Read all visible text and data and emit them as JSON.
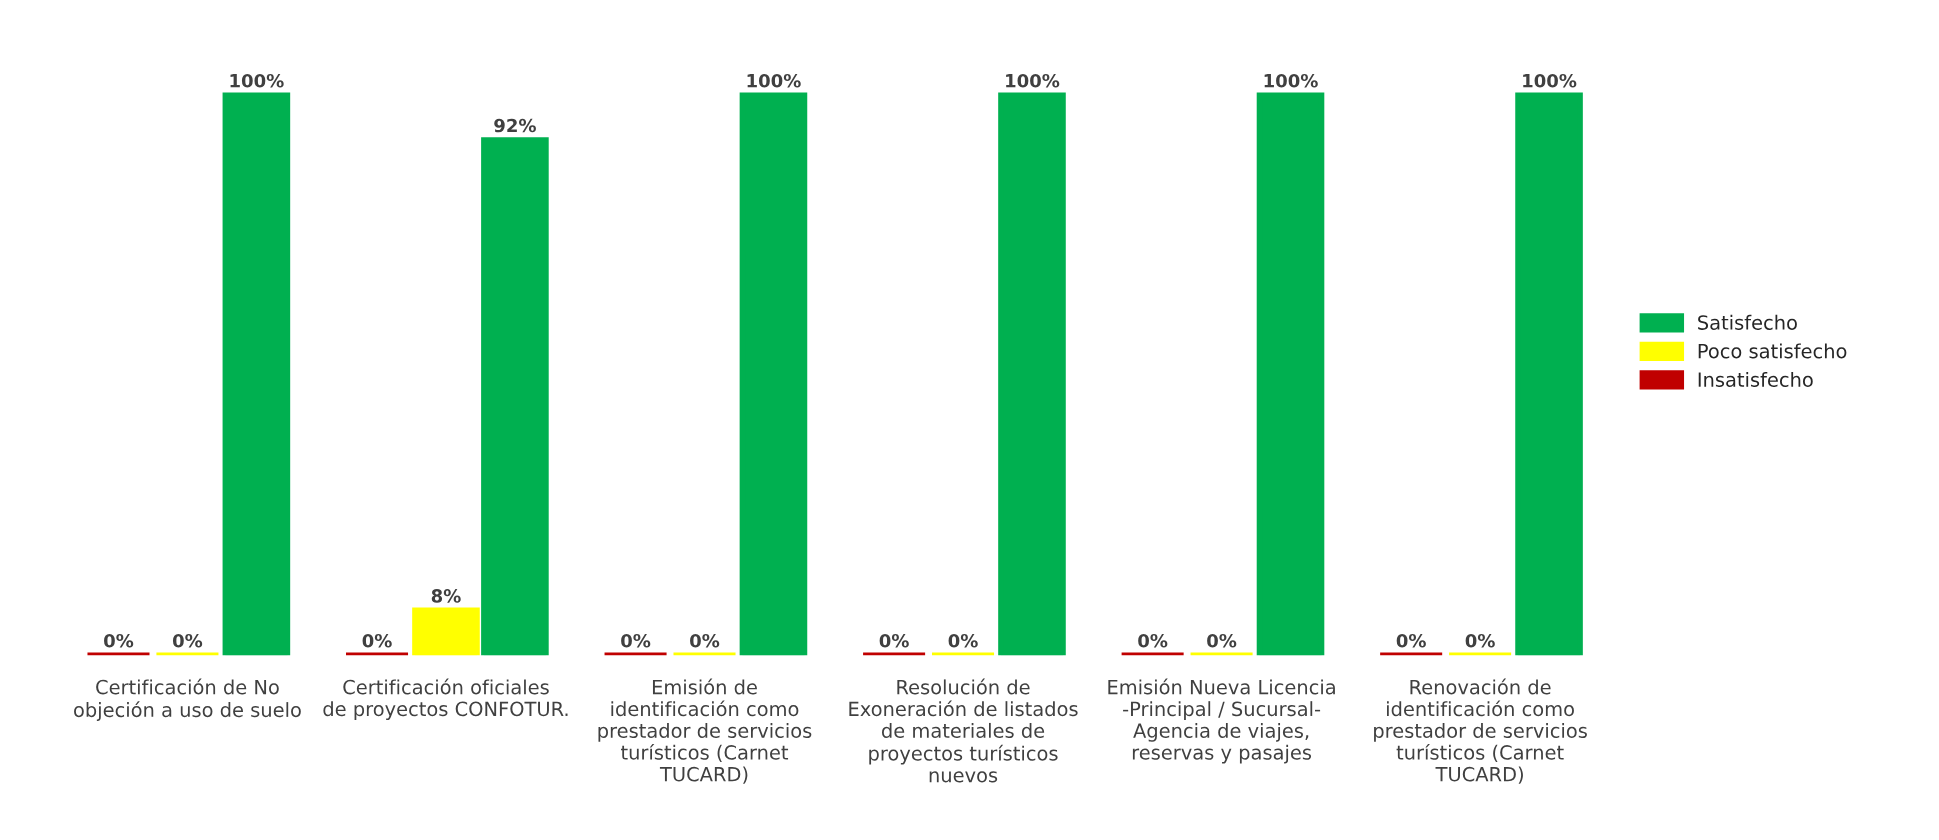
{
  "chart_data": {
    "type": "bar",
    "categories": [
      "Certificación de No objeción a uso de suelo",
      "Certificación oficiales de proyectos CONFOTUR.",
      "Emisión de identificación como prestador de servicios turísticos (Carnet TUCARD)",
      "Resolución de Exoneración de listados de materiales de proyectos turísticos nuevos",
      "Emisión Nueva Licencia -Principal / Sucursal- Agencia de viajes, reservas y pasajes",
      "Renovación de identificación como prestador de servicios turísticos (Carnet TUCARD)"
    ],
    "series": [
      {
        "name": "Insatisfecho",
        "color": "#c00000",
        "values": [
          0,
          0,
          0,
          0,
          0,
          0
        ],
        "value_labels": [
          "0%",
          "0%",
          "0%",
          "0%",
          "0%",
          "0%"
        ]
      },
      {
        "name": "Poco satisfecho",
        "color": "#ffff00",
        "values": [
          0,
          8,
          0,
          0,
          0,
          0
        ],
        "value_labels": [
          "0%",
          "8%",
          "0%",
          "0%",
          "0%",
          "0%"
        ]
      },
      {
        "name": "Satisfecho",
        "color": "#00b050",
        "values": [
          100,
          92,
          100,
          100,
          100,
          100
        ],
        "value_labels": [
          "100%",
          "92%",
          "100%",
          "100%",
          "100%",
          "100%"
        ]
      }
    ],
    "legend": "right"
  }
}
